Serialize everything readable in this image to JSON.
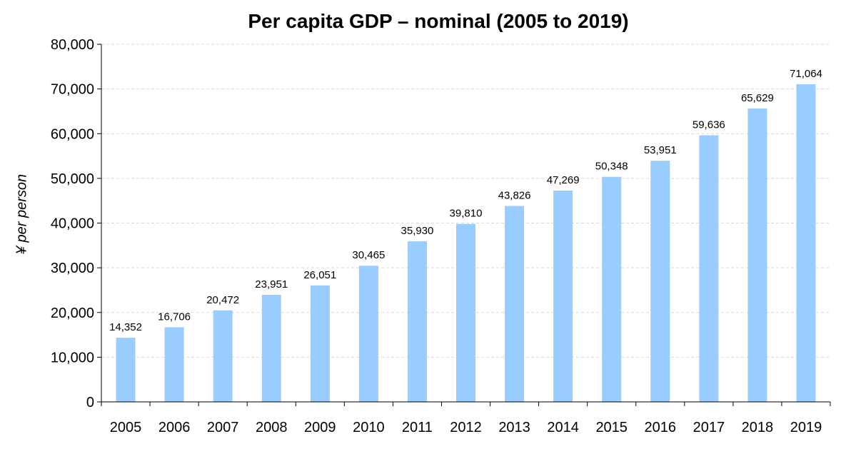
{
  "chart_data": {
    "type": "bar",
    "title": "Per capita GDP – nominal (2005 to 2019)",
    "xlabel": "",
    "ylabel": "¥ per person",
    "categories": [
      "2005",
      "2006",
      "2007",
      "2008",
      "2009",
      "2010",
      "2011",
      "2012",
      "2013",
      "2014",
      "2015",
      "2016",
      "2017",
      "2018",
      "2019"
    ],
    "values": [
      14352,
      16706,
      20472,
      23951,
      26051,
      30465,
      35930,
      39810,
      43826,
      47269,
      50348,
      53951,
      59636,
      65629,
      71064
    ],
    "value_labels": [
      "14,352",
      "16,706",
      "20,472",
      "23,951",
      "26,051",
      "30,465",
      "35,930",
      "39,810",
      "43,826",
      "47,269",
      "50,348",
      "53,951",
      "59,636",
      "65,629",
      "71,064"
    ],
    "ylim": [
      0,
      80000
    ],
    "yticks": [
      0,
      10000,
      20000,
      30000,
      40000,
      50000,
      60000,
      70000,
      80000
    ],
    "ytick_labels": [
      "0",
      "10,000",
      "20,000",
      "30,000",
      "40,000",
      "50,000",
      "60,000",
      "70,000",
      "80,000"
    ],
    "grid": true,
    "bar_color": "#99ccff",
    "grid_color": "#d9d9d9",
    "axis_color": "#000000"
  }
}
